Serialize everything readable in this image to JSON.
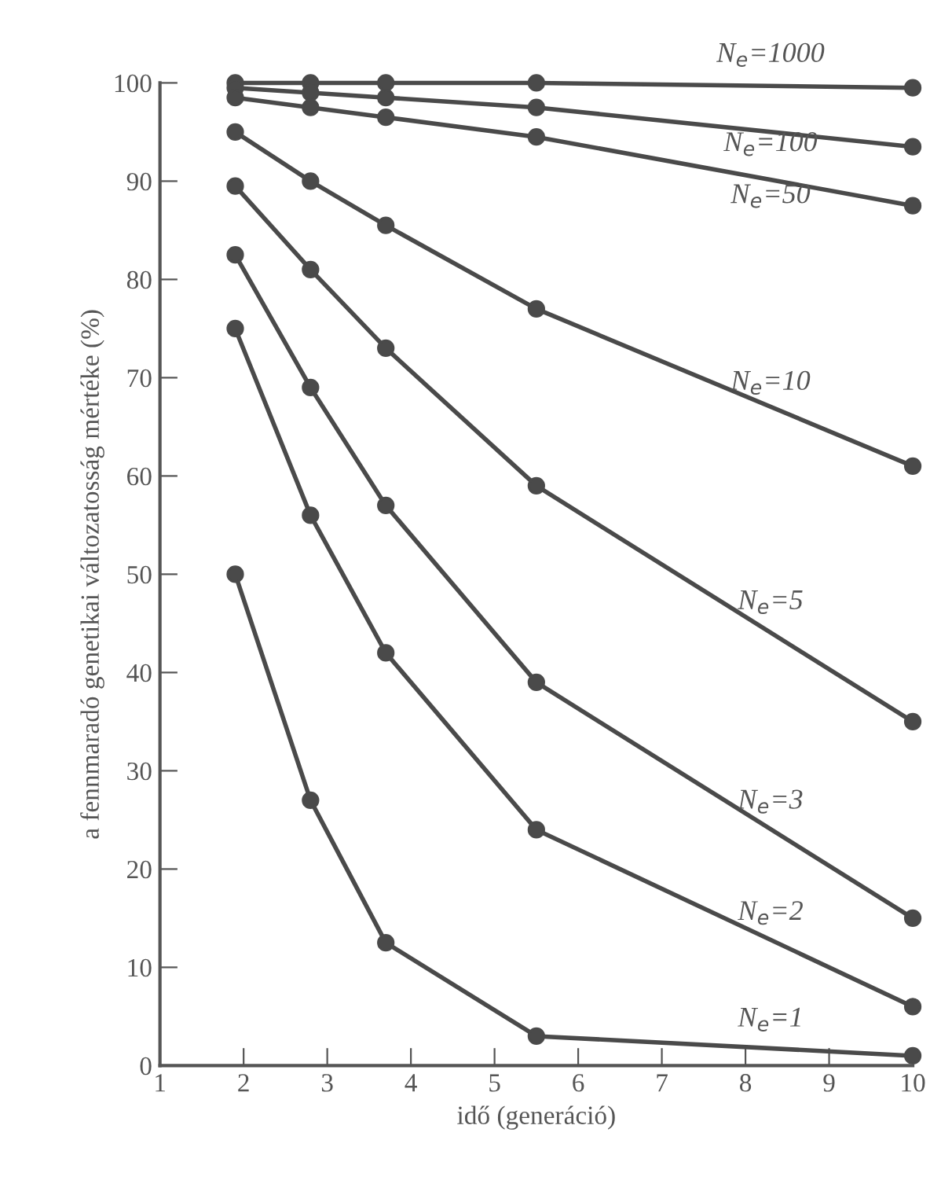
{
  "chart_data": {
    "type": "line",
    "xlabel": "idő (generáció)",
    "ylabel": "a fennmaradó genetikai változatosság mértéke (%)",
    "x": [
      1.9,
      2.8,
      3.7,
      5.5,
      10
    ],
    "xlim": [
      1,
      10
    ],
    "xticks": [
      1,
      2,
      3,
      4,
      5,
      6,
      7,
      8,
      9,
      10
    ],
    "ylim": [
      0,
      100
    ],
    "yticks": [
      0,
      10,
      20,
      30,
      40,
      50,
      60,
      70,
      80,
      90,
      100
    ],
    "grid": false,
    "legend": false,
    "marker": "circle",
    "line_style": "solid",
    "series": [
      {
        "name": "N$_{e}$=1000",
        "color": "#4a4a4a",
        "values": [
          100,
          100,
          100,
          100,
          99.5
        ]
      },
      {
        "name": "N$_{e}$=100",
        "color": "#4a4a4a",
        "values": [
          99.5,
          99,
          98.5,
          97.5,
          93.5
        ]
      },
      {
        "name": "N$_{e}$=50",
        "color": "#4a4a4a",
        "values": [
          98.5,
          97.5,
          96.5,
          94.5,
          87.5
        ]
      },
      {
        "name": "N$_{e}$=10",
        "color": "#4a4a4a",
        "values": [
          95,
          90,
          85.5,
          77,
          61
        ]
      },
      {
        "name": "N$_{e}$=5",
        "color": "#4a4a4a",
        "values": [
          89.5,
          81,
          73,
          59,
          35
        ]
      },
      {
        "name": "N$_{e}$=3",
        "color": "#4a4a4a",
        "values": [
          82.5,
          69,
          57,
          39,
          15
        ]
      },
      {
        "name": "N$_{e}$=2",
        "color": "#4a4a4a",
        "values": [
          75,
          56,
          42,
          24,
          6
        ]
      },
      {
        "name": "N$_{e}$=1",
        "color": "#4a4a4a",
        "values": [
          50,
          27,
          12.5,
          3,
          1
        ]
      }
    ]
  }
}
